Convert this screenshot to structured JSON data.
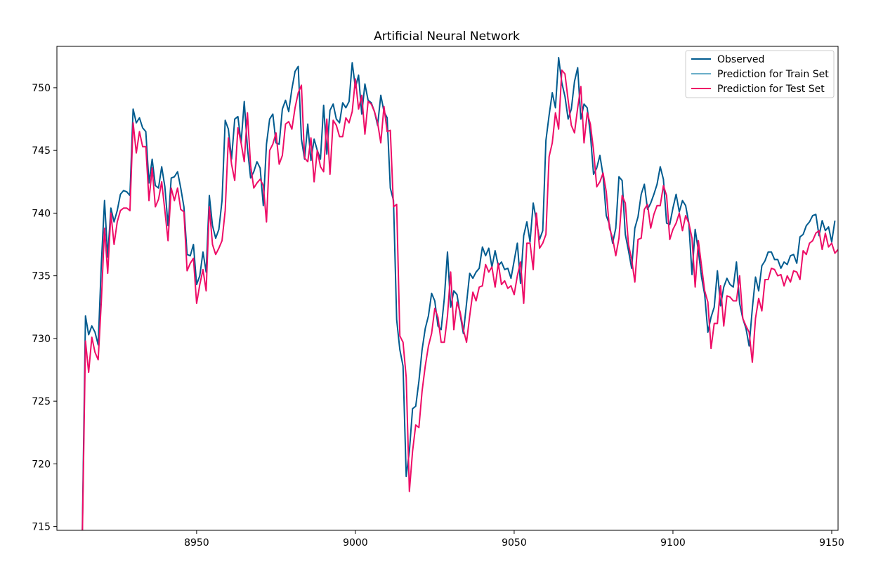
{
  "chart_data": {
    "type": "line",
    "title": "Artificial Neural Network",
    "xlabel": "",
    "ylabel": "",
    "xlim": [
      8906,
      9152
    ],
    "ylim": [
      714.7,
      753.3
    ],
    "x_ticks": [
      8950,
      9000,
      9050,
      9100,
      9150
    ],
    "y_ticks": [
      715,
      720,
      725,
      730,
      735,
      740,
      745,
      750
    ],
    "grid": false,
    "legend_position": "top-right",
    "legend": [
      "Observed",
      "Prediction for Train Set",
      "Prediction for Test Set"
    ],
    "colors": {
      "observed": "#005b8f",
      "train": "#6aaec8",
      "test": "#ee0d67"
    },
    "x_start": 8914,
    "series": [
      {
        "name": "Observed",
        "color": "#005b8f",
        "values": [
          714.5,
          731.8,
          730.3,
          731.0,
          730.5,
          729.5,
          736.0,
          741.0,
          736.5,
          740.4,
          739.3,
          740.2,
          741.5,
          741.8,
          741.7,
          741.4,
          748.3,
          747.2,
          747.6,
          746.8,
          746.5,
          742.4,
          744.3,
          742.2,
          742.0,
          743.7,
          742.1,
          739.0,
          742.8,
          742.9,
          743.3,
          742.0,
          740.5,
          736.7,
          736.6,
          737.5,
          734.3,
          735.0,
          736.9,
          735.3,
          741.4,
          739.0,
          738.0,
          738.7,
          741.0,
          747.4,
          746.7,
          744.3,
          747.5,
          747.7,
          745.6,
          748.9,
          745.2,
          742.8,
          743.3,
          744.1,
          743.6,
          740.6,
          745.5,
          747.5,
          747.9,
          745.6,
          745.5,
          748.3,
          749.0,
          748.1,
          749.9,
          751.3,
          751.7,
          745.9,
          744.3,
          747.1,
          744.2,
          745.9,
          745.0,
          744.3,
          748.6,
          744.7,
          748.2,
          748.7,
          747.5,
          747.2,
          748.8,
          748.4,
          748.9,
          752.0,
          750.0,
          751.0,
          747.9,
          750.3,
          749.0,
          748.8,
          748.1,
          747.0,
          749.4,
          748.1,
          747.6,
          742.0,
          741.0,
          731.5,
          729.1,
          727.8,
          719.0,
          721.0,
          724.4,
          724.6,
          726.6,
          729.1,
          730.8,
          731.8,
          733.6,
          733.0,
          731.0,
          730.7,
          733.2,
          736.9,
          732.5,
          733.8,
          733.5,
          731.9,
          730.4,
          732.8,
          735.2,
          734.8,
          735.3,
          735.6,
          737.3,
          736.6,
          737.2,
          735.7,
          737.0,
          735.8,
          736.1,
          735.5,
          735.6,
          734.8,
          736.2,
          737.6,
          734.4,
          738.2,
          739.3,
          737.7,
          740.8,
          739.4,
          737.9,
          738.6,
          745.8,
          747.8,
          749.6,
          748.4,
          752.4,
          750.4,
          749.3,
          747.5,
          748.3,
          750.5,
          751.6,
          747.5,
          748.7,
          748.4,
          746.3,
          743.1,
          743.6,
          744.6,
          743.0,
          739.8,
          739.1,
          737.6,
          738.8,
          742.9,
          742.6,
          738.3,
          737.0,
          735.6,
          738.8,
          739.7,
          741.5,
          742.3,
          740.3,
          740.8,
          741.5,
          742.3,
          743.7,
          742.7,
          739.2,
          739.1,
          740.4,
          741.5,
          740.1,
          741.0,
          740.6,
          739.2,
          735.1,
          738.7,
          737.0,
          734.9,
          733.5,
          730.5,
          731.7,
          732.5,
          735.4,
          732.6,
          734.1,
          734.8,
          734.3,
          734.1,
          736.1,
          732.8,
          731.6,
          730.8,
          729.4,
          732.4,
          734.9,
          733.8,
          735.8,
          736.2,
          736.9,
          736.9,
          736.3,
          736.3,
          735.6,
          736.1,
          735.9,
          736.6,
          736.7,
          736.0,
          738.1,
          738.3,
          739.0,
          739.3,
          739.8,
          739.9,
          738.2,
          739.4,
          738.6,
          738.9,
          737.7,
          739.4
        ]
      },
      {
        "name": "Prediction for Test Set",
        "color": "#ee0d67",
        "values": [
          714.0,
          729.8,
          727.3,
          730.1,
          728.9,
          728.3,
          733.0,
          738.8,
          735.2,
          740.0,
          737.5,
          739.3,
          740.2,
          740.4,
          740.4,
          740.2,
          747.2,
          744.8,
          746.5,
          745.3,
          745.3,
          741.0,
          743.6,
          740.5,
          741.1,
          742.5,
          740.2,
          737.8,
          742.0,
          741.0,
          742.0,
          740.3,
          740.1,
          735.4,
          736.0,
          736.4,
          732.8,
          734.3,
          735.5,
          733.8,
          740.5,
          737.5,
          736.7,
          737.2,
          737.8,
          740.2,
          746.0,
          743.9,
          742.6,
          746.8,
          745.6,
          744.1,
          748.0,
          743.8,
          742.0,
          742.4,
          742.7,
          742.2,
          739.3,
          745.0,
          745.5,
          746.4,
          743.9,
          744.6,
          747.1,
          747.3,
          746.7,
          748.4,
          749.6,
          750.2,
          744.4,
          744.1,
          746.0,
          742.5,
          745.0,
          743.7,
          743.3,
          747.5,
          743.1,
          747.4,
          747.0,
          746.1,
          746.1,
          747.6,
          747.2,
          748.1,
          750.7,
          748.3,
          749.4,
          746.3,
          748.9,
          748.7,
          748.1,
          747.2,
          745.6,
          748.5,
          746.5,
          746.6,
          740.5,
          740.7,
          730.2,
          729.7,
          726.9,
          717.8,
          721.0,
          723.1,
          722.9,
          725.8,
          727.8,
          729.4,
          730.4,
          732.4,
          731.7,
          729.7,
          729.7,
          731.8,
          735.3,
          730.7,
          732.9,
          732.1,
          730.7,
          729.7,
          731.8,
          733.7,
          733.0,
          734.1,
          734.2,
          735.9,
          735.3,
          735.7,
          734.1,
          736.0,
          734.3,
          734.6,
          734.0,
          734.2,
          733.5,
          735.0,
          736.1,
          732.8,
          737.6,
          737.6,
          735.5,
          740.0,
          737.2,
          737.6,
          738.3,
          744.5,
          745.6,
          748.0,
          746.7,
          751.4,
          751.1,
          749.0,
          747.0,
          746.4,
          748.4,
          750.1,
          745.6,
          748.0,
          747.1,
          745.0,
          742.1,
          742.5,
          743.2,
          741.7,
          738.8,
          738.0,
          736.6,
          738.0,
          741.4,
          740.8,
          737.5,
          736.3,
          734.5,
          737.9,
          738.0,
          740.3,
          740.7,
          738.8,
          739.9,
          740.6,
          740.6,
          742.2,
          741.4,
          737.9,
          738.7,
          739.2,
          740.0,
          738.6,
          739.8,
          739.2,
          738.0,
          734.1,
          737.8,
          735.8,
          733.8,
          732.9,
          729.2,
          731.2,
          731.2,
          734.2,
          731.0,
          733.4,
          733.3,
          733.0,
          733.0,
          735.0,
          731.6,
          731.0,
          730.5,
          728.1,
          731.6,
          733.2,
          732.2,
          734.7,
          734.7,
          735.6,
          735.5,
          735.0,
          735.1,
          734.2,
          735.0,
          734.5,
          735.4,
          735.3,
          734.7,
          737.0,
          736.7,
          737.6,
          737.8,
          738.4,
          738.6,
          737.1,
          738.4,
          737.3,
          737.6,
          736.8,
          737.1
        ]
      }
    ]
  }
}
